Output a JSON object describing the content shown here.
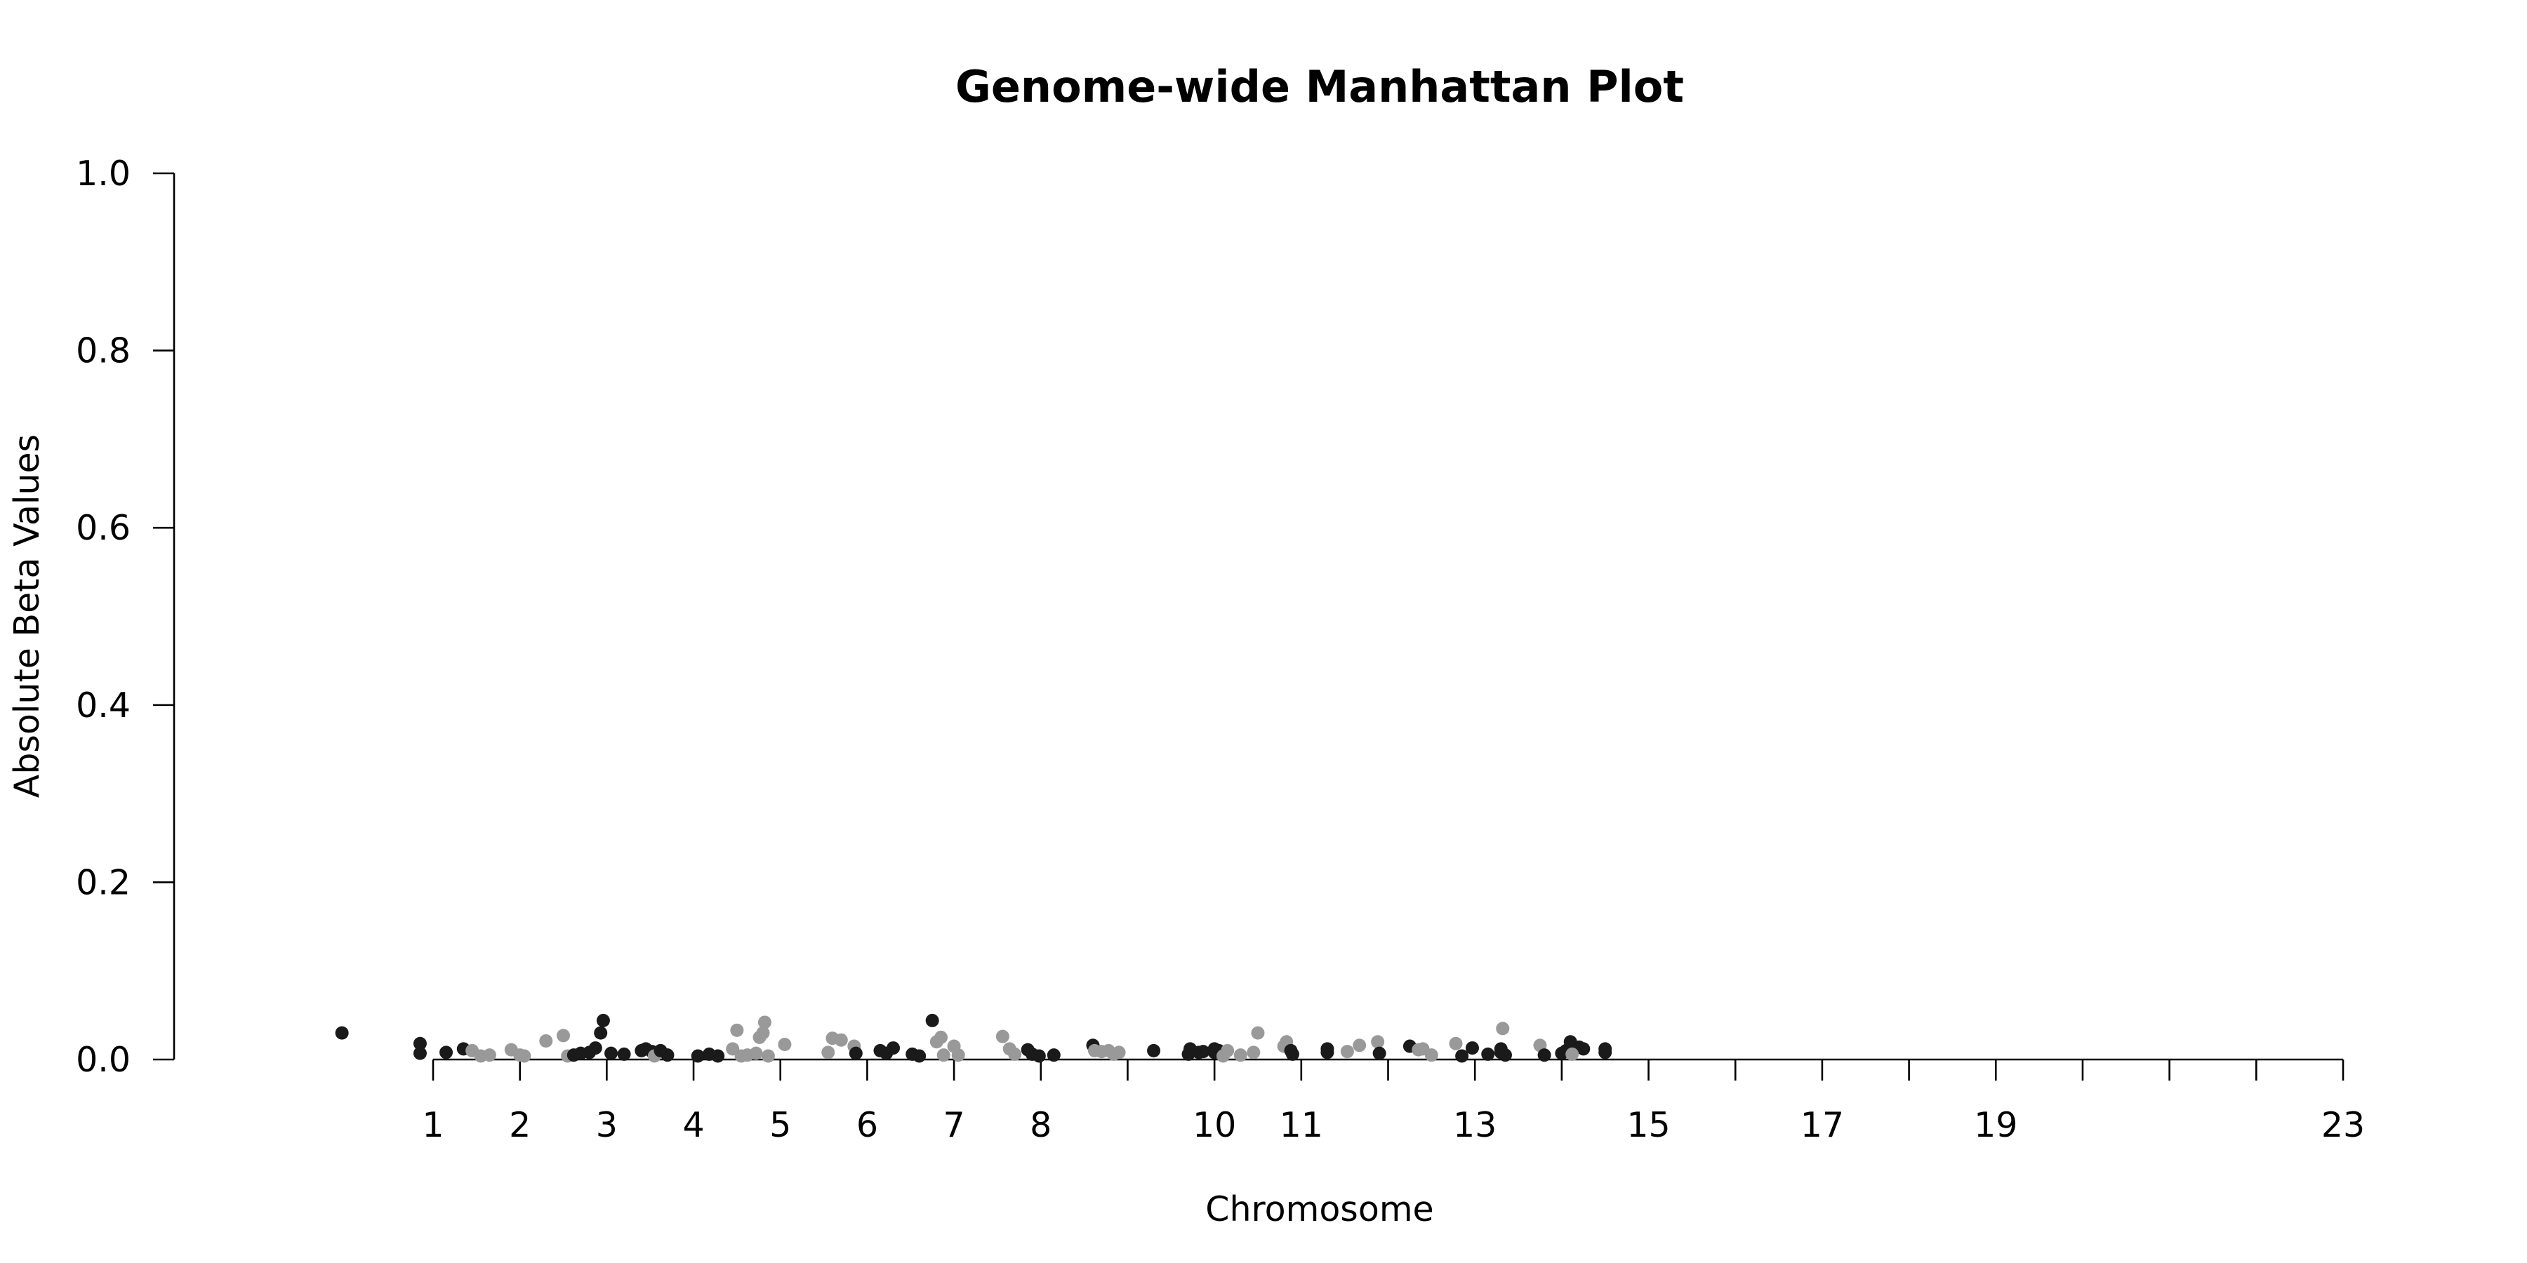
{
  "chart_data": {
    "type": "scatter",
    "title": "Genome-wide Manhattan Plot",
    "xlabel": "Chromosome",
    "ylabel": "Absolute Beta Values",
    "ylim": [
      0,
      1.0
    ],
    "y_ticks": [
      "0.0",
      "0.2",
      "0.4",
      "0.6",
      "0.8",
      "1.0"
    ],
    "x_tick_positions": [
      1,
      2,
      3,
      4,
      5,
      6,
      7,
      8,
      9,
      10,
      11,
      12,
      13,
      14,
      15,
      16,
      17,
      18,
      19,
      20,
      21,
      22,
      23
    ],
    "x_tick_labels": [
      "1",
      "2",
      "3",
      "4",
      "5",
      "6",
      "7",
      "8",
      "",
      "10",
      "11",
      "",
      "13",
      "",
      "15",
      "",
      "17",
      "",
      "19",
      "",
      "",
      "",
      "23"
    ],
    "xlim": [
      -0.05,
      23.35
    ],
    "grid": false,
    "colors": {
      "odd_chromosome": "#1a1a1a",
      "even_chromosome": "#999999"
    },
    "points": [
      {
        "x": -0.05,
        "y": 0.03,
        "c": 1
      },
      {
        "x": 0.85,
        "y": 0.018,
        "c": 1
      },
      {
        "x": 0.85,
        "y": 0.007,
        "c": 1
      },
      {
        "x": 1.15,
        "y": 0.008,
        "c": 1
      },
      {
        "x": 1.35,
        "y": 0.012,
        "c": 1
      },
      {
        "x": 1.45,
        "y": 0.01,
        "c": 2
      },
      {
        "x": 1.55,
        "y": 0.004,
        "c": 2
      },
      {
        "x": 1.65,
        "y": 0.005,
        "c": 2
      },
      {
        "x": 1.9,
        "y": 0.011,
        "c": 2
      },
      {
        "x": 2.0,
        "y": 0.005,
        "c": 2
      },
      {
        "x": 2.05,
        "y": 0.004,
        "c": 2
      },
      {
        "x": 2.3,
        "y": 0.021,
        "c": 2
      },
      {
        "x": 2.5,
        "y": 0.027,
        "c": 2
      },
      {
        "x": 2.55,
        "y": 0.004,
        "c": 2
      },
      {
        "x": 2.62,
        "y": 0.005,
        "c": 1
      },
      {
        "x": 2.7,
        "y": 0.007,
        "c": 1
      },
      {
        "x": 2.8,
        "y": 0.008,
        "c": 1
      },
      {
        "x": 2.87,
        "y": 0.013,
        "c": 1
      },
      {
        "x": 2.93,
        "y": 0.03,
        "c": 1
      },
      {
        "x": 2.96,
        "y": 0.044,
        "c": 1
      },
      {
        "x": 3.05,
        "y": 0.007,
        "c": 1
      },
      {
        "x": 3.2,
        "y": 0.006,
        "c": 1
      },
      {
        "x": 3.4,
        "y": 0.01,
        "c": 1
      },
      {
        "x": 3.45,
        "y": 0.012,
        "c": 1
      },
      {
        "x": 3.52,
        "y": 0.009,
        "c": 1
      },
      {
        "x": 3.55,
        "y": 0.004,
        "c": 2
      },
      {
        "x": 3.62,
        "y": 0.01,
        "c": 1
      },
      {
        "x": 3.7,
        "y": 0.005,
        "c": 1
      },
      {
        "x": 4.05,
        "y": 0.004,
        "c": 1
      },
      {
        "x": 4.18,
        "y": 0.006,
        "c": 1
      },
      {
        "x": 4.28,
        "y": 0.004,
        "c": 1
      },
      {
        "x": 4.45,
        "y": 0.012,
        "c": 2
      },
      {
        "x": 4.5,
        "y": 0.033,
        "c": 2
      },
      {
        "x": 4.55,
        "y": 0.004,
        "c": 2
      },
      {
        "x": 4.62,
        "y": 0.005,
        "c": 2
      },
      {
        "x": 4.72,
        "y": 0.007,
        "c": 2
      },
      {
        "x": 4.76,
        "y": 0.025,
        "c": 2
      },
      {
        "x": 4.8,
        "y": 0.03,
        "c": 2
      },
      {
        "x": 4.82,
        "y": 0.042,
        "c": 2
      },
      {
        "x": 4.86,
        "y": 0.004,
        "c": 2
      },
      {
        "x": 5.05,
        "y": 0.017,
        "c": 2
      },
      {
        "x": 5.55,
        "y": 0.008,
        "c": 2
      },
      {
        "x": 5.6,
        "y": 0.024,
        "c": 2
      },
      {
        "x": 5.7,
        "y": 0.022,
        "c": 2
      },
      {
        "x": 5.85,
        "y": 0.015,
        "c": 2
      },
      {
        "x": 5.87,
        "y": 0.007,
        "c": 1
      },
      {
        "x": 6.15,
        "y": 0.01,
        "c": 1
      },
      {
        "x": 6.22,
        "y": 0.007,
        "c": 1
      },
      {
        "x": 6.3,
        "y": 0.013,
        "c": 1
      },
      {
        "x": 6.52,
        "y": 0.006,
        "c": 1
      },
      {
        "x": 6.6,
        "y": 0.004,
        "c": 1
      },
      {
        "x": 6.75,
        "y": 0.044,
        "c": 1
      },
      {
        "x": 6.8,
        "y": 0.02,
        "c": 2
      },
      {
        "x": 6.85,
        "y": 0.025,
        "c": 2
      },
      {
        "x": 6.88,
        "y": 0.005,
        "c": 2
      },
      {
        "x": 7.0,
        "y": 0.015,
        "c": 2
      },
      {
        "x": 7.05,
        "y": 0.005,
        "c": 2
      },
      {
        "x": 7.56,
        "y": 0.026,
        "c": 2
      },
      {
        "x": 7.64,
        "y": 0.012,
        "c": 2
      },
      {
        "x": 7.7,
        "y": 0.006,
        "c": 2
      },
      {
        "x": 7.85,
        "y": 0.011,
        "c": 1
      },
      {
        "x": 7.9,
        "y": 0.006,
        "c": 1
      },
      {
        "x": 7.98,
        "y": 0.004,
        "c": 1
      },
      {
        "x": 8.15,
        "y": 0.005,
        "c": 1
      },
      {
        "x": 8.6,
        "y": 0.016,
        "c": 1
      },
      {
        "x": 8.62,
        "y": 0.01,
        "c": 2
      },
      {
        "x": 8.7,
        "y": 0.009,
        "c": 2
      },
      {
        "x": 8.78,
        "y": 0.01,
        "c": 2
      },
      {
        "x": 8.84,
        "y": 0.006,
        "c": 2
      },
      {
        "x": 8.9,
        "y": 0.008,
        "c": 2
      },
      {
        "x": 9.3,
        "y": 0.01,
        "c": 1
      },
      {
        "x": 9.7,
        "y": 0.006,
        "c": 1
      },
      {
        "x": 9.72,
        "y": 0.012,
        "c": 1
      },
      {
        "x": 9.82,
        "y": 0.008,
        "c": 1
      },
      {
        "x": 9.87,
        "y": 0.009,
        "c": 1
      },
      {
        "x": 10.0,
        "y": 0.008,
        "c": 1
      },
      {
        "x": 10.0,
        "y": 0.012,
        "c": 1
      },
      {
        "x": 10.05,
        "y": 0.01,
        "c": 1
      },
      {
        "x": 10.1,
        "y": 0.004,
        "c": 2
      },
      {
        "x": 10.15,
        "y": 0.01,
        "c": 2
      },
      {
        "x": 10.3,
        "y": 0.005,
        "c": 2
      },
      {
        "x": 10.45,
        "y": 0.008,
        "c": 2
      },
      {
        "x": 10.5,
        "y": 0.03,
        "c": 2
      },
      {
        "x": 10.8,
        "y": 0.015,
        "c": 2
      },
      {
        "x": 10.83,
        "y": 0.02,
        "c": 2
      },
      {
        "x": 10.88,
        "y": 0.01,
        "c": 1
      },
      {
        "x": 10.9,
        "y": 0.006,
        "c": 1
      },
      {
        "x": 11.3,
        "y": 0.008,
        "c": 1
      },
      {
        "x": 11.3,
        "y": 0.012,
        "c": 1
      },
      {
        "x": 11.53,
        "y": 0.009,
        "c": 2
      },
      {
        "x": 11.67,
        "y": 0.016,
        "c": 2
      },
      {
        "x": 11.88,
        "y": 0.02,
        "c": 2
      },
      {
        "x": 11.9,
        "y": 0.007,
        "c": 1
      },
      {
        "x": 12.25,
        "y": 0.015,
        "c": 1
      },
      {
        "x": 12.35,
        "y": 0.011,
        "c": 2
      },
      {
        "x": 12.4,
        "y": 0.012,
        "c": 2
      },
      {
        "x": 12.5,
        "y": 0.005,
        "c": 2
      },
      {
        "x": 12.78,
        "y": 0.018,
        "c": 2
      },
      {
        "x": 12.85,
        "y": 0.004,
        "c": 1
      },
      {
        "x": 12.97,
        "y": 0.013,
        "c": 1
      },
      {
        "x": 13.15,
        "y": 0.006,
        "c": 1
      },
      {
        "x": 13.3,
        "y": 0.008,
        "c": 1
      },
      {
        "x": 13.3,
        "y": 0.012,
        "c": 1
      },
      {
        "x": 13.32,
        "y": 0.035,
        "c": 2
      },
      {
        "x": 13.35,
        "y": 0.005,
        "c": 1
      },
      {
        "x": 13.75,
        "y": 0.016,
        "c": 2
      },
      {
        "x": 13.8,
        "y": 0.005,
        "c": 1
      },
      {
        "x": 14.0,
        "y": 0.007,
        "c": 1
      },
      {
        "x": 14.05,
        "y": 0.01,
        "c": 1
      },
      {
        "x": 14.1,
        "y": 0.02,
        "c": 1
      },
      {
        "x": 14.15,
        "y": 0.012,
        "c": 1
      },
      {
        "x": 14.2,
        "y": 0.014,
        "c": 1
      },
      {
        "x": 14.25,
        "y": 0.012,
        "c": 1
      },
      {
        "x": 14.12,
        "y": 0.006,
        "c": 2
      },
      {
        "x": 14.5,
        "y": 0.012,
        "c": 1
      },
      {
        "x": 14.5,
        "y": 0.008,
        "c": 1
      }
    ]
  }
}
